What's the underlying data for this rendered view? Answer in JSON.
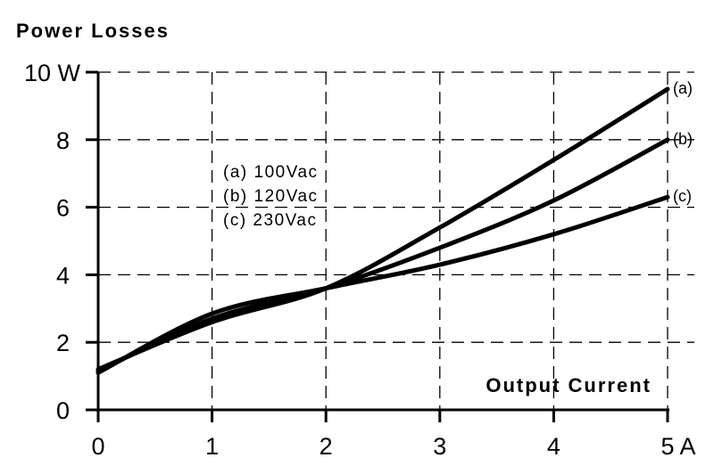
{
  "chart_data": {
    "type": "line",
    "title": "Power Losses",
    "xlabel": "Output Current",
    "ylabel": "Power Losses",
    "xlim": [
      0,
      5
    ],
    "ylim": [
      0,
      10
    ],
    "grid": true,
    "x_ticks": [
      "0",
      "1",
      "2",
      "3",
      "4",
      "5 A"
    ],
    "y_ticks": [
      "0",
      "2",
      "4",
      "6",
      "8",
      "10 W"
    ],
    "x": [
      0,
      1,
      2,
      3,
      4,
      5
    ],
    "series": [
      {
        "name": "(a)",
        "label": "(a)  100Vac",
        "values": [
          1.2,
          2.6,
          3.6,
          5.4,
          7.4,
          9.5
        ]
      },
      {
        "name": "(b)",
        "label": "(b)  120Vac",
        "values": [
          1.15,
          2.7,
          3.6,
          4.8,
          6.2,
          8.0
        ]
      },
      {
        "name": "(c)",
        "label": "(c)  230Vac",
        "values": [
          1.1,
          2.85,
          3.6,
          4.3,
          5.2,
          6.3
        ]
      }
    ],
    "legend_position": "upper-left"
  }
}
